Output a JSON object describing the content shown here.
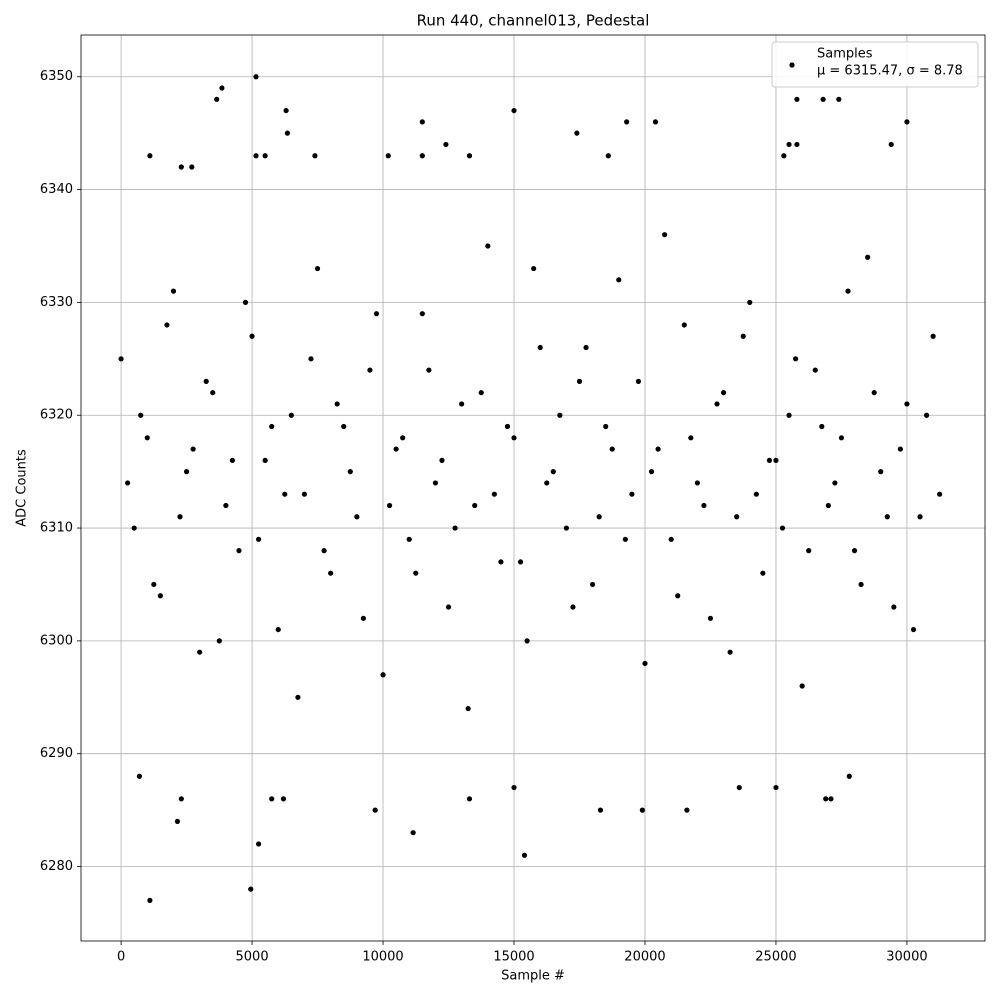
{
  "chart_data": {
    "type": "scatter",
    "title": "Run 440, channel013, Pedestal",
    "x_label": "Sample #",
    "y_label": "ADC Counts",
    "xlim": [
      -1530,
      32980
    ],
    "ylim": [
      6273.4,
      6353.7
    ],
    "xticks": [
      0,
      5000,
      10000,
      15000,
      20000,
      25000,
      30000
    ],
    "yticks": [
      6280,
      6290,
      6300,
      6310,
      6320,
      6330,
      6340,
      6350
    ],
    "grid": true,
    "legend_corner": "upper right",
    "legend_note": "μ = 6315.47, σ = 8.78",
    "series": [
      {
        "name": "Samples",
        "color": "#000000",
        "x": [
          1100,
          4950,
          5250,
          15400,
          11150,
          2150,
          9700,
          5150,
          3850,
          3650,
          6300,
          15000,
          11500,
          19300,
          20400,
          30000,
          17400,
          6350,
          25800,
          26800,
          27400,
          700,
          2300,
          6200,
          5750,
          13300,
          18300,
          19900,
          21600,
          26900,
          27100,
          27800,
          15000,
          23600,
          25000,
          1100,
          2300,
          2700,
          5150,
          5500,
          7400,
          10200,
          11500,
          13300,
          18600,
          25300,
          25500,
          25800,
          29400,
          12400,
          0,
          500,
          1000,
          1500,
          2000,
          2500,
          3000,
          3500,
          4000,
          4500,
          5000,
          5500,
          6000,
          6500,
          7000,
          7500,
          8000,
          8500,
          9000,
          9500,
          10000,
          10500,
          11000,
          11500,
          12000,
          12500,
          13000,
          13500,
          14000,
          14500,
          15000,
          15500,
          16000,
          16500,
          17000,
          17500,
          18000,
          18500,
          19000,
          19500,
          20000,
          20500,
          21000,
          21500,
          22000,
          22500,
          23000,
          23500,
          24000,
          24500,
          25000,
          25500,
          26000,
          26500,
          27000,
          27500,
          28000,
          28500,
          29000,
          29500,
          30000,
          30500,
          31000,
          250,
          750,
          1250,
          1750,
          2250,
          2750,
          3250,
          3750,
          4250,
          4750,
          5250,
          5750,
          6250,
          6750,
          7250,
          7750,
          8250,
          8750,
          9250,
          9750,
          10250,
          10750,
          11250,
          11750,
          12250,
          12750,
          13250,
          13750,
          14250,
          14750,
          15250,
          15750,
          16250,
          16750,
          17250,
          17750,
          18250,
          18750,
          19250,
          19750,
          20250,
          20750,
          21250,
          21750,
          22250,
          22750,
          23250,
          23750,
          24250,
          24750,
          25250,
          25750,
          26250,
          26750,
          27250,
          27750,
          28250,
          28750,
          29250,
          29750,
          30250,
          30750,
          31250
        ],
        "values": [
          6277,
          6278,
          6282,
          6281,
          6283,
          6284,
          6285,
          6350,
          6349,
          6348,
          6347,
          6347,
          6346,
          6346,
          6346,
          6346,
          6345,
          6345,
          6348,
          6348,
          6348,
          6288,
          6286,
          6286,
          6286,
          6286,
          6285,
          6285,
          6285,
          6286,
          6286,
          6288,
          6287,
          6287,
          6287,
          6343,
          6342,
          6342,
          6343,
          6343,
          6343,
          6343,
          6343,
          6343,
          6343,
          6343,
          6344,
          6344,
          6344,
          6344,
          6325,
          6310,
          6318,
          6304,
          6331,
          6315,
          6299,
          6322,
          6312,
          6308,
          6327,
          6316,
          6301,
          6320,
          6313,
          6333,
          6306,
          6319,
          6311,
          6324,
          6297,
          6317,
          6309,
          6329,
          6314,
          6303,
          6321,
          6312,
          6335,
          6307,
          6318,
          6300,
          6326,
          6315,
          6310,
          6323,
          6305,
          6319,
          6332,
          6313,
          6298,
          6317,
          6309,
          6328,
          6314,
          6302,
          6322,
          6311,
          6330,
          6306,
          6316,
          6320,
          6296,
          6324,
          6312,
          6318,
          6308,
          6334,
          6315,
          6303,
          6321,
          6311,
          6327,
          6314,
          6320,
          6305,
          6328,
          6311,
          6317,
          6323,
          6300,
          6316,
          6330,
          6309,
          6319,
          6313,
          6295,
          6325,
          6308,
          6321,
          6315,
          6302,
          6329,
          6312,
          6318,
          6306,
          6324,
          6316,
          6310,
          6294,
          6322,
          6313,
          6319,
          6307,
          6333,
          6314,
          6320,
          6303,
          6326,
          6311,
          6317,
          6309,
          6323,
          6315,
          6336,
          6304,
          6318,
          6312,
          6321,
          6299,
          6327,
          6313,
          6316,
          6310,
          6325,
          6308,
          6319,
          6314,
          6331,
          6305,
          6322,
          6311,
          6317,
          6301,
          6320,
          6313
        ]
      }
    ]
  }
}
